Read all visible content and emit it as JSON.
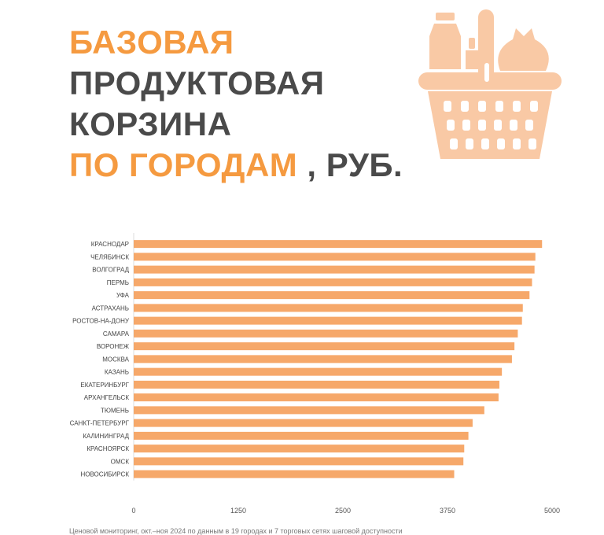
{
  "title": {
    "line1": "БАЗОВАЯ",
    "line2": "ПРОДУКТОВАЯ",
    "line3": "КОРЗИНА",
    "line4_accent": "ПО ГОРОДАМ",
    "line4_rest": " , РУБ."
  },
  "colors": {
    "accent": "#f59a40",
    "bar": "#f6a86a",
    "text_dark": "#4a4a4a",
    "basket": "#f9c9a5"
  },
  "icons": {
    "basket": "grocery-basket-icon"
  },
  "chart_data": {
    "type": "bar",
    "orientation": "horizontal",
    "categories": [
      "КРАСНОДАР",
      "ЧЕЛЯБИНСК",
      "ВОЛГОГРАД",
      "ПЕРМЬ",
      "УФА",
      "АСТРАХАНЬ",
      "РОСТОВ-НА-ДОНУ",
      "САМАРА",
      "ВОРОНЕЖ",
      "МОСКВА",
      "КАЗАНЬ",
      "ЕКАТЕРИНБУРГ",
      "АРХАНГЕЛЬСК",
      "ТЮМЕНЬ",
      "САНКТ-ПЕТЕРБУРГ",
      "КАЛИНИНГРАД",
      "КРАСНОЯРСК",
      "ОМСК",
      "НОВОСИБИРСК"
    ],
    "values": [
      4880,
      4800,
      4790,
      4760,
      4730,
      4650,
      4640,
      4590,
      4550,
      4520,
      4400,
      4370,
      4360,
      4190,
      4050,
      4000,
      3950,
      3940,
      3830
    ],
    "xlim": [
      0,
      5000
    ],
    "xticks": [
      "0",
      "1250",
      "2500",
      "3750",
      "5000"
    ],
    "grid": false
  },
  "footnote": "Ценовой мониторинг, окт.–ноя 2024 по данным в 19 городах и 7 торговых сетях шаговой доступности"
}
